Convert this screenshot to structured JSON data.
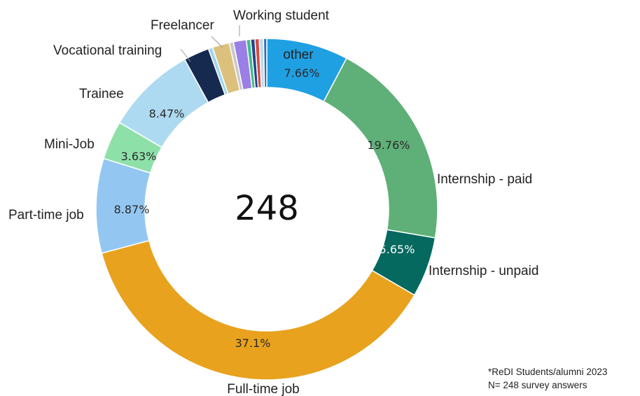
{
  "chart_data": {
    "type": "pie",
    "donut": true,
    "center_label": "248",
    "slices": [
      {
        "label": "other",
        "value": 7.66,
        "value_label": "7.66%",
        "color": "#1fa0e3"
      },
      {
        "label": "Internship - paid",
        "value": 19.76,
        "value_label": "19.76%",
        "color": "#5fb078"
      },
      {
        "label": "Internship - unpaid",
        "value": 5.65,
        "value_label": "5.65%",
        "color": "#06695f"
      },
      {
        "label": "Full-time job",
        "value": 37.1,
        "value_label": "37.1%",
        "color": "#e8a21e"
      },
      {
        "label": "Part-time job",
        "value": 8.87,
        "value_label": "8.87%",
        "color": "#93c7f2"
      },
      {
        "label": "Mini-Job",
        "value": 3.63,
        "value_label": "3.63%",
        "color": "#8ee0a9"
      },
      {
        "label": "Trainee",
        "value": 8.47,
        "value_label": "8.47%",
        "color": "#addaf1"
      },
      {
        "label": "Vocational training",
        "value": 2.4,
        "value_label": "",
        "color": "#16294f"
      },
      {
        "label": "",
        "value": 0.4,
        "value_label": "",
        "color": "#9fd6ee"
      },
      {
        "label": "Freelancer",
        "value": 1.6,
        "value_label": "",
        "color": "#dcc07d"
      },
      {
        "label": "",
        "value": 0.4,
        "value_label": "",
        "color": "#c9c9c9"
      },
      {
        "label": "Working student",
        "value": 1.2,
        "value_label": "",
        "color": "#9b7fe6"
      },
      {
        "label": "",
        "value": 0.4,
        "value_label": "",
        "color": "#3fbd8a"
      },
      {
        "label": "",
        "value": 0.4,
        "value_label": "",
        "color": "#24458a"
      },
      {
        "label": "",
        "value": 0.4,
        "value_label": "",
        "color": "#d64a3e"
      },
      {
        "label": "",
        "value": 0.4,
        "value_label": "",
        "color": "#c2d8ea"
      },
      {
        "label": "",
        "value": 0.3,
        "value_label": "",
        "color": "#1f74b8"
      }
    ]
  },
  "footnote": {
    "line1": "*ReDI Students/alumni 2023",
    "line2": "N= 248  survey answers"
  }
}
